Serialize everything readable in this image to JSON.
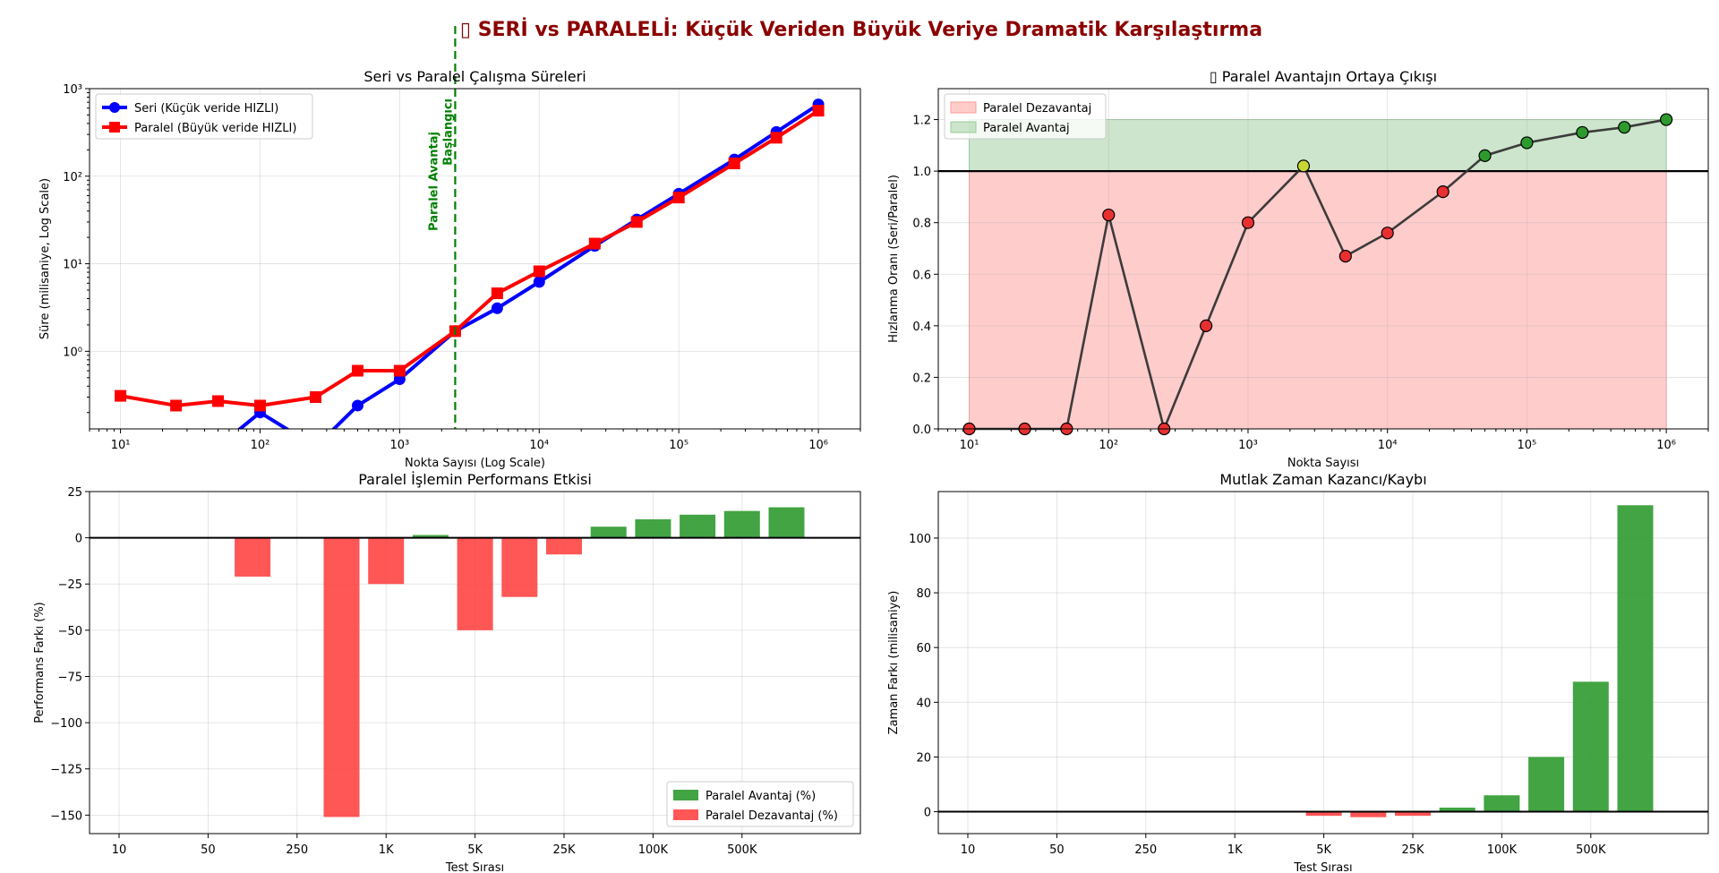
{
  "suptitle": "▯ SERİ vs PARALELİ: Küçük Veriden Büyük Veriye Dramatik Karşılaştırma",
  "chart_data": [
    {
      "type": "line",
      "title": "Seri vs Paralel Çalışma Süreleri",
      "xlabel": "Nokta Sayısı (Log Scale)",
      "ylabel": "Süre (milisaniye, Log Scale)",
      "x_scale": "log",
      "y_scale": "log",
      "xlim": [
        6,
        2000000
      ],
      "ylim": [
        0.13,
        1000
      ],
      "x_tick_labels": [
        "10¹",
        "10²",
        "10³",
        "10⁴",
        "10⁵",
        "10⁶"
      ],
      "y_tick_labels": [
        "10⁰",
        "10¹",
        "10²",
        "10³"
      ],
      "grid": true,
      "legend_position": "upper-left",
      "series": [
        {
          "name": "Seri (Küçük veride HIZLI)",
          "color": "#0000ff",
          "marker": "circle",
          "x": [
            10,
            25,
            50,
            100,
            250,
            500,
            1000,
            2500,
            5000,
            10000,
            25000,
            50000,
            100000,
            250000,
            500000,
            1000000
          ],
          "y": [
            0.0,
            0.0,
            0.0,
            0.2,
            0.0,
            0.24,
            0.48,
            1.7,
            3.1,
            6.2,
            16.0,
            32.0,
            63.0,
            155.0,
            320.0,
            660.0
          ]
        },
        {
          "name": "Paralel (Büyük veride HIZLI)",
          "color": "#ff0000",
          "marker": "square",
          "x": [
            10,
            25,
            50,
            100,
            250,
            500,
            1000,
            2500,
            5000,
            10000,
            25000,
            50000,
            100000,
            250000,
            500000,
            1000000
          ],
          "y": [
            0.31,
            0.24,
            0.27,
            0.24,
            0.3,
            0.6,
            0.6,
            1.7,
            4.6,
            8.2,
            17.0,
            30.0,
            57.0,
            140.0,
            275.0,
            560.0
          ]
        }
      ],
      "annotation": {
        "label": "Paralel Avantaj Başlangıcı",
        "x": 2500,
        "color": "#008000"
      }
    },
    {
      "type": "line",
      "title": "▯ Paralel Avantajın Ortaya Çıkışı",
      "xlabel": "Nokta Sayısı",
      "ylabel": "Hızlanma Oranı (Seri/Paralel)",
      "x_scale": "log",
      "xlim": [
        6,
        2000000
      ],
      "ylim": [
        0,
        1.32
      ],
      "x_tick_labels": [
        "10¹",
        "10²",
        "10³",
        "10⁴",
        "10⁵",
        "10⁶"
      ],
      "y_ticks": [
        0.0,
        0.2,
        0.4,
        0.6,
        0.8,
        1.0,
        1.2
      ],
      "y_tick_labels": [
        "0.0",
        "0.2",
        "0.4",
        "0.6",
        "0.8",
        "1.0",
        "1.2"
      ],
      "grid": true,
      "legend_position": "upper-left",
      "reference_line": 1.0,
      "regions": [
        {
          "name": "Paralel Dezavantaj",
          "y0": 0.0,
          "y1": 1.0,
          "color": "#ff9999"
        },
        {
          "name": "Paralel Avantaj",
          "y0": 1.0,
          "y1": 1.2,
          "color": "#99cc99"
        }
      ],
      "x": [
        10,
        25,
        50,
        100,
        250,
        500,
        1000,
        2500,
        5000,
        10000,
        25000,
        50000,
        100000,
        250000,
        500000,
        1000000
      ],
      "y": [
        0.0,
        0.0,
        0.0,
        0.83,
        0.0,
        0.4,
        0.8,
        1.02,
        0.67,
        0.76,
        0.92,
        1.06,
        1.11,
        1.15,
        1.17,
        1.2
      ],
      "point_colors": [
        "#e83030",
        "#e83030",
        "#e83030",
        "#e83030",
        "#e83030",
        "#e83030",
        "#e83030",
        "#c8d633",
        "#e83030",
        "#e83030",
        "#e83030",
        "#2e9a2e",
        "#2e9a2e",
        "#2e9a2e",
        "#2e9a2e",
        "#2e9a2e"
      ]
    },
    {
      "type": "bar",
      "title": "Paralel İşlemin Performans Etkisi",
      "xlabel": "Test Sırası",
      "ylabel": "Performans Farkı (%)",
      "ylim": [
        -160,
        25
      ],
      "y_ticks": [
        -150,
        -125,
        -100,
        -75,
        -50,
        -25,
        0,
        25
      ],
      "y_tick_labels": [
        "−150",
        "−125",
        "−100",
        "−75",
        "−50",
        "−25",
        "0",
        "25"
      ],
      "x_tick_labels": [
        "10",
        "50",
        "250",
        "1K",
        "5K",
        "25K",
        "100K",
        "500K"
      ],
      "grid": true,
      "legend_position": "lower-right",
      "legend": [
        {
          "name": "Paralel Avantaj (%)",
          "color": "#2e9a2e"
        },
        {
          "name": "Paralel Dezavantaj (%)",
          "color": "#ff4444"
        }
      ],
      "values": [
        0,
        0,
        0,
        -21,
        0,
        -151,
        -25,
        1.5,
        -50,
        -32,
        -9,
        6,
        10,
        12.5,
        14.5,
        16.5
      ]
    },
    {
      "type": "bar",
      "title": "Mutlak Zaman Kazancı/Kaybı",
      "xlabel": "Test Sırası",
      "ylabel": "Zaman Farkı (milisaniye)",
      "ylim": [
        -8,
        117
      ],
      "y_ticks": [
        0,
        20,
        40,
        60,
        80,
        100
      ],
      "y_tick_labels": [
        "0",
        "20",
        "40",
        "60",
        "80",
        "100"
      ],
      "x_tick_labels": [
        "10",
        "50",
        "250",
        "1K",
        "5K",
        "25K",
        "100K",
        "500K"
      ],
      "grid": true,
      "values": [
        0,
        0,
        0,
        0,
        0,
        0,
        0,
        0,
        -1.5,
        -2,
        -1.5,
        1.5,
        6,
        20,
        47.5,
        112
      ]
    }
  ]
}
